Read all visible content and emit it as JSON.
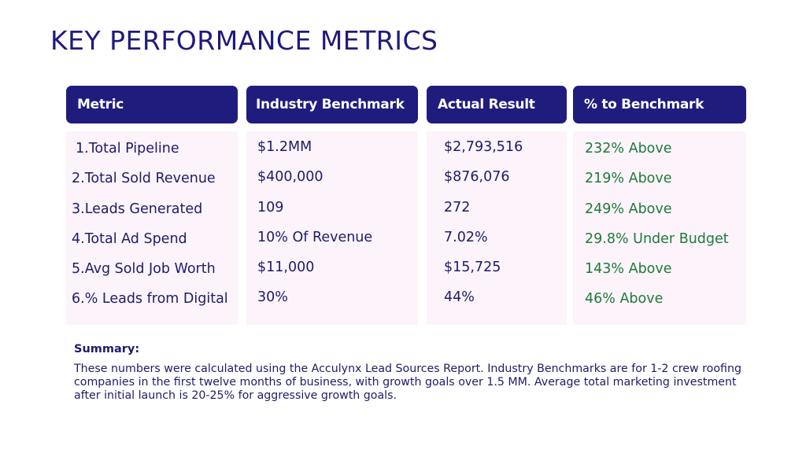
{
  "title": "KEY PERFORMANCE METRICS",
  "table": {
    "headers": [
      "Metric",
      "Industry Benchmark",
      "Actual Result",
      "% to Benchmark"
    ],
    "rows": [
      [
        "1.Total Pipeline",
        "$1.2MM",
        "$2,793,516",
        "232% Above"
      ],
      [
        "2.Total Sold Revenue",
        "$400,000",
        "$876,076",
        "219% Above"
      ],
      [
        "3.Leads Generated",
        "109",
        "272",
        "249% Above"
      ],
      [
        "4.Total Ad Spend",
        "10% Of Revenue",
        "7.02%",
        "29.8% Under Budget"
      ],
      [
        "5.Avg Sold Job Worth",
        "$11,000",
        "$15,725",
        "143% Above"
      ],
      [
        "6.% Leads from Digital",
        "30%",
        "44%",
        "46% Above"
      ]
    ]
  },
  "summary": {
    "title": "Summary:",
    "text": "These numbers were calculated using the Acculynx Lead Sources Report. Industry Benchmarks are for 1-2 crew roofing companies in the first twelve months of business, with growth goals over 1.5 MM. Average total marketing investment after initial launch is 20-25% for aggressive growth goals."
  },
  "colors": {
    "header_bg": "#201c7e",
    "header_text": "#ffffff",
    "body_bg": "#fcf4fa",
    "text": "#1e1b6b",
    "positive": "#1e7a3a"
  }
}
